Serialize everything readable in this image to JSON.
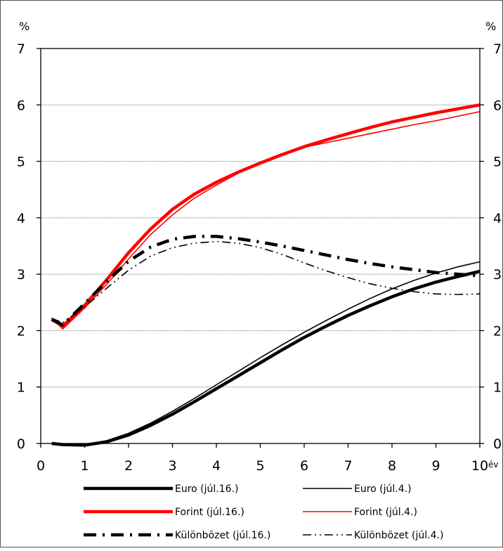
{
  "chart_data": {
    "type": "line",
    "title": "",
    "ylabel_left": "%",
    "ylabel_right": "%",
    "xunit": "év",
    "xlim": [
      0,
      10
    ],
    "ylim": [
      0,
      7
    ],
    "xticks": [
      "0",
      "1",
      "2",
      "3",
      "4",
      "5",
      "6",
      "7",
      "8",
      "9",
      "10"
    ],
    "yticks": [
      "0",
      "1",
      "2",
      "3",
      "4",
      "5",
      "6",
      "7"
    ],
    "grid": true,
    "legend_position": "bottom",
    "series": [
      {
        "name": "Euro (júl.16.)",
        "color": "#000000",
        "style": "thick-solid",
        "x": [
          0.25,
          0.5,
          1,
          1.5,
          2,
          2.5,
          3,
          3.5,
          4,
          4.5,
          5,
          5.5,
          6,
          6.5,
          7,
          7.5,
          8,
          8.5,
          9,
          9.5,
          10
        ],
        "y": [
          0.0,
          -0.02,
          -0.03,
          0.03,
          0.15,
          0.32,
          0.52,
          0.74,
          0.97,
          1.2,
          1.43,
          1.66,
          1.88,
          2.08,
          2.27,
          2.44,
          2.6,
          2.74,
          2.86,
          2.96,
          3.05
        ]
      },
      {
        "name": "Euro (júl.4.)",
        "color": "#000000",
        "style": "thin-solid",
        "x": [
          0.25,
          0.5,
          1,
          1.5,
          2,
          2.5,
          3,
          3.5,
          4,
          4.5,
          5,
          5.5,
          6,
          6.5,
          7,
          7.5,
          8,
          8.5,
          9,
          9.5,
          10
        ],
        "y": [
          0.0,
          -0.02,
          -0.02,
          0.05,
          0.18,
          0.36,
          0.57,
          0.8,
          1.04,
          1.28,
          1.52,
          1.75,
          1.97,
          2.18,
          2.38,
          2.57,
          2.74,
          2.89,
          3.02,
          3.13,
          3.22
        ]
      },
      {
        "name": "Forint (júl.16.)",
        "color": "#ff0000",
        "style": "thick-solid",
        "x": [
          0.25,
          0.5,
          1,
          1.5,
          2,
          2.5,
          3,
          3.5,
          4,
          4.5,
          5,
          5.5,
          6,
          6.5,
          7,
          7.5,
          8,
          8.5,
          9,
          9.5,
          10
        ],
        "y": [
          2.2,
          2.08,
          2.45,
          2.9,
          3.38,
          3.8,
          4.15,
          4.42,
          4.63,
          4.81,
          4.97,
          5.12,
          5.26,
          5.38,
          5.49,
          5.6,
          5.7,
          5.78,
          5.86,
          5.93,
          6.0
        ]
      },
      {
        "name": "Forint (júl.4.)",
        "color": "#ff0000",
        "style": "thin-solid",
        "x": [
          0.25,
          0.5,
          1,
          1.5,
          2,
          2.5,
          3,
          3.5,
          4,
          4.5,
          5,
          5.5,
          6,
          6.5,
          7,
          7.5,
          8,
          8.5,
          9,
          9.5,
          10
        ],
        "y": [
          2.22,
          2.03,
          2.4,
          2.82,
          3.27,
          3.7,
          4.05,
          4.35,
          4.58,
          4.79,
          4.98,
          5.13,
          5.25,
          5.33,
          5.41,
          5.49,
          5.57,
          5.65,
          5.72,
          5.8,
          5.88
        ]
      },
      {
        "name": "Különbözet (júl.16.)",
        "color": "#000000",
        "style": "thick-dashdot",
        "x": [
          0.25,
          0.5,
          1,
          1.5,
          2,
          2.5,
          3,
          3.5,
          4,
          4.5,
          5,
          5.5,
          6,
          6.5,
          7,
          7.5,
          8,
          8.5,
          9,
          9.5,
          10
        ],
        "y": [
          2.2,
          2.1,
          2.48,
          2.87,
          3.23,
          3.48,
          3.62,
          3.67,
          3.67,
          3.63,
          3.57,
          3.5,
          3.42,
          3.34,
          3.26,
          3.19,
          3.13,
          3.08,
          3.03,
          3.0,
          2.97
        ]
      },
      {
        "name": "Különbözet (júl.4.)",
        "color": "#000000",
        "style": "thin-dashdotdot",
        "x": [
          0.25,
          0.5,
          1,
          1.5,
          2,
          2.5,
          3,
          3.5,
          4,
          4.5,
          5,
          5.5,
          6,
          6.5,
          7,
          7.5,
          8,
          8.5,
          9,
          9.5,
          10
        ],
        "y": [
          2.22,
          2.14,
          2.42,
          2.75,
          3.07,
          3.32,
          3.47,
          3.55,
          3.58,
          3.55,
          3.47,
          3.35,
          3.2,
          3.06,
          2.94,
          2.83,
          2.75,
          2.69,
          2.65,
          2.64,
          2.65
        ]
      }
    ]
  }
}
